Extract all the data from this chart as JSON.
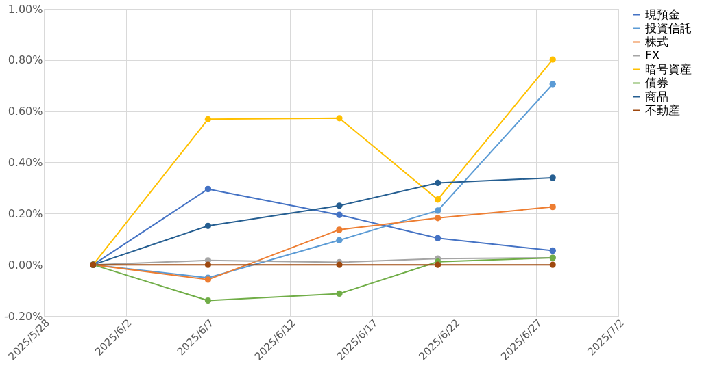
{
  "chart_data": {
    "type": "line",
    "x": [
      "2025-05-31",
      "2025-06-07",
      "2025-06-15",
      "2025-06-21",
      "2025-06-28"
    ],
    "series": [
      {
        "name": "現預金",
        "color": "#4472c4",
        "values": [
          0,
          0.296,
          0.195,
          0.104,
          0.055
        ]
      },
      {
        "name": "投資信託",
        "color": "#5b9bd5",
        "values": [
          0,
          -0.051,
          0.096,
          0.212,
          0.706
        ]
      },
      {
        "name": "株式",
        "color": "#ed7d31",
        "values": [
          0,
          -0.058,
          0.137,
          0.183,
          0.226
        ]
      },
      {
        "name": "FX",
        "color": "#a5a5a5",
        "values": [
          0,
          0.017,
          0.01,
          0.024,
          0.027
        ]
      },
      {
        "name": "暗号資産",
        "color": "#ffc000",
        "values": [
          0,
          0.569,
          0.573,
          0.255,
          0.802
        ]
      },
      {
        "name": "債券",
        "color": "#70ad47",
        "values": [
          0,
          -0.14,
          -0.113,
          0.012,
          0.027
        ]
      },
      {
        "name": "商品",
        "color": "#255e91",
        "values": [
          0,
          0.152,
          0.231,
          0.32,
          0.34
        ]
      },
      {
        "name": "不動産",
        "color": "#9e480e",
        "values": [
          0,
          0,
          0,
          0,
          0
        ]
      }
    ],
    "xlim": [
      "2025-05-28",
      "2025-07-02"
    ],
    "xticks": [
      {
        "value": "2025-05-28",
        "label": "2025/5/28"
      },
      {
        "value": "2025-06-02",
        "label": "2025/6/2"
      },
      {
        "value": "2025-06-07",
        "label": "2025/6/7"
      },
      {
        "value": "2025-06-12",
        "label": "2025/6/12"
      },
      {
        "value": "2025-06-17",
        "label": "2025/6/17"
      },
      {
        "value": "2025-06-22",
        "label": "2025/6/22"
      },
      {
        "value": "2025-06-27",
        "label": "2025/6/27"
      },
      {
        "value": "2025-07-02",
        "label": "2025/7/2"
      }
    ],
    "ylim": [
      -0.2,
      1.0
    ],
    "yticks": [
      {
        "value": -0.2,
        "label": "-0.20%"
      },
      {
        "value": 0,
        "label": "0.00%"
      },
      {
        "value": 0.2,
        "label": "0.20%"
      },
      {
        "value": 0.4,
        "label": "0.40%"
      },
      {
        "value": 0.6,
        "label": "0.60%"
      },
      {
        "value": 0.8,
        "label": "0.80%"
      },
      {
        "value": 1.0,
        "label": "1.00%"
      }
    ],
    "grid": true,
    "legend": "right",
    "marker": "circle",
    "line_style": "solid"
  }
}
